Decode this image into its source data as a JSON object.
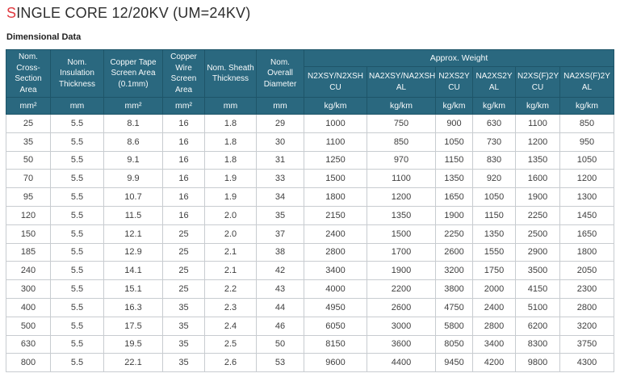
{
  "page": {
    "title_accent": "S",
    "title_rest": "INGLE CORE 12/20KV (UM=24KV)",
    "section_heading": "Dimensional Data"
  },
  "colors": {
    "header_bg": "#2A687F",
    "header_border": "#1E5569",
    "accent_red": "#E03A40",
    "body_border": "#C8CCD0",
    "body_text": "#3F3F3F"
  },
  "table": {
    "main_columns": [
      {
        "label": "Nom. Cross-Section Area",
        "unit": "mm²"
      },
      {
        "label": "Nom. Insulation Thickness",
        "unit": "mm"
      },
      {
        "label": "Copper Tape Screen Area (0.1mm)",
        "unit": "mm²"
      },
      {
        "label": "Copper Wire Screen Area",
        "unit": "mm²"
      },
      {
        "label": "Nom. Sheath Thickness",
        "unit": "mm"
      },
      {
        "label": "Nom. Overall Diameter",
        "unit": "mm"
      }
    ],
    "weight_group_label": "Approx. Weight",
    "weight_columns": [
      {
        "name": "N2XSY/N2XSH",
        "material": "CU",
        "unit": "kg/km"
      },
      {
        "name": "NA2XSY/NA2XSH",
        "material": "AL",
        "unit": "kg/km"
      },
      {
        "name": "N2XS2Y",
        "material": "CU",
        "unit": "kg/km"
      },
      {
        "name": "NA2XS2Y",
        "material": "AL",
        "unit": "kg/km"
      },
      {
        "name": "N2XS(F)2Y",
        "material": "CU",
        "unit": "kg/km"
      },
      {
        "name": "NA2XS(F)2Y",
        "material": "AL",
        "unit": "kg/km"
      }
    ],
    "rows": [
      [
        "25",
        "5.5",
        "8.1",
        "16",
        "1.8",
        "29",
        "1000",
        "750",
        "900",
        "630",
        "1100",
        "850"
      ],
      [
        "35",
        "5.5",
        "8.6",
        "16",
        "1.8",
        "30",
        "1100",
        "850",
        "1050",
        "730",
        "1200",
        "950"
      ],
      [
        "50",
        "5.5",
        "9.1",
        "16",
        "1.8",
        "31",
        "1250",
        "970",
        "1150",
        "830",
        "1350",
        "1050"
      ],
      [
        "70",
        "5.5",
        "9.9",
        "16",
        "1.9",
        "33",
        "1500",
        "1100",
        "1350",
        "920",
        "1600",
        "1200"
      ],
      [
        "95",
        "5.5",
        "10.7",
        "16",
        "1.9",
        "34",
        "1800",
        "1200",
        "1650",
        "1050",
        "1900",
        "1300"
      ],
      [
        "120",
        "5.5",
        "11.5",
        "16",
        "2.0",
        "35",
        "2150",
        "1350",
        "1900",
        "1150",
        "2250",
        "1450"
      ],
      [
        "150",
        "5.5",
        "12.1",
        "25",
        "2.0",
        "37",
        "2400",
        "1500",
        "2250",
        "1350",
        "2500",
        "1650"
      ],
      [
        "185",
        "5.5",
        "12.9",
        "25",
        "2.1",
        "38",
        "2800",
        "1700",
        "2600",
        "1550",
        "2900",
        "1800"
      ],
      [
        "240",
        "5.5",
        "14.1",
        "25",
        "2.1",
        "42",
        "3400",
        "1900",
        "3200",
        "1750",
        "3500",
        "2050"
      ],
      [
        "300",
        "5.5",
        "15.1",
        "25",
        "2.2",
        "43",
        "4000",
        "2200",
        "3800",
        "2000",
        "4150",
        "2300"
      ],
      [
        "400",
        "5.5",
        "16.3",
        "35",
        "2.3",
        "44",
        "4950",
        "2600",
        "4750",
        "2400",
        "5100",
        "2800"
      ],
      [
        "500",
        "5.5",
        "17.5",
        "35",
        "2.4",
        "46",
        "6050",
        "3000",
        "5800",
        "2800",
        "6200",
        "3200"
      ],
      [
        "630",
        "5.5",
        "19.5",
        "35",
        "2.5",
        "50",
        "8150",
        "3600",
        "8050",
        "3400",
        "8300",
        "3750"
      ],
      [
        "800",
        "5.5",
        "22.1",
        "35",
        "2.6",
        "53",
        "9600",
        "4400",
        "9450",
        "4200",
        "9800",
        "4300"
      ]
    ]
  }
}
